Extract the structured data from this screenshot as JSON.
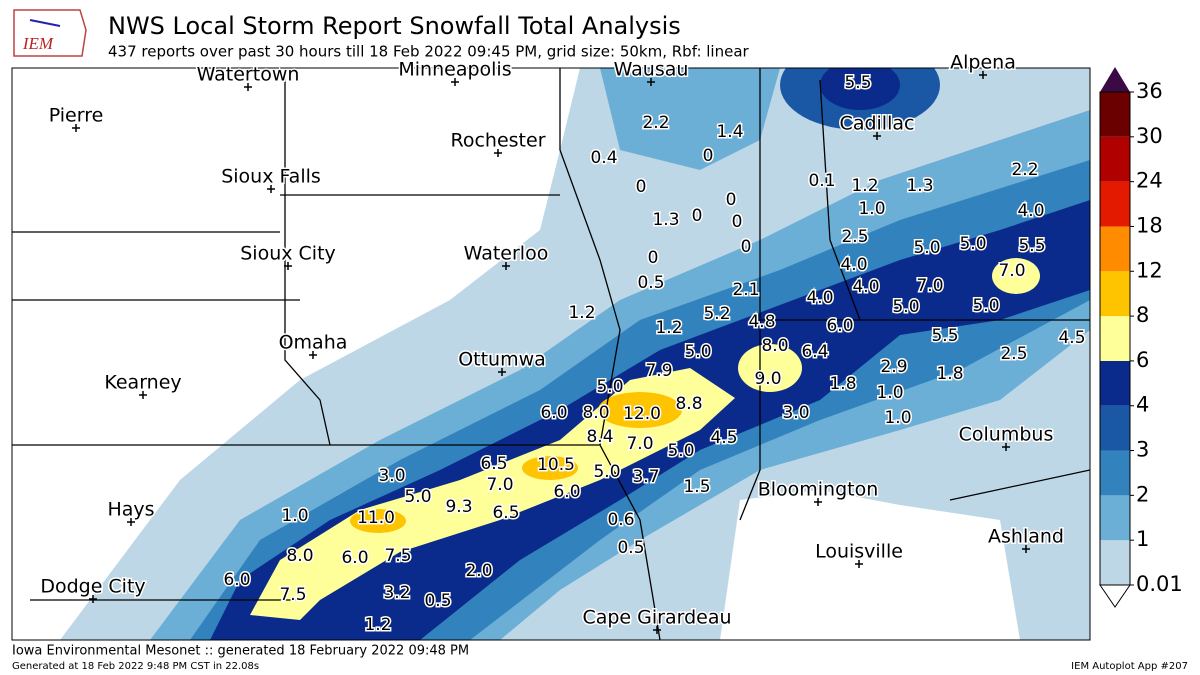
{
  "header": {
    "logo": "IEM",
    "title": "NWS Local Storm Report Snowfall Total Analysis",
    "subtitle": "437 reports over past 30 hours till 18 Feb 2022 09:45 PM, grid size: 50km, Rbf: linear"
  },
  "cities": [
    "Watertown",
    "Minneapolis",
    "Wausau",
    "Alpena",
    "Pierre",
    "Rochester",
    "Cadillac",
    "Sioux Falls",
    "Sioux City",
    "Waterloo",
    "Omaha",
    "Ottumwa",
    "Kearney",
    "Columbus",
    "Bloomington",
    "Hays",
    "Louisville",
    "Ashland",
    "Dodge City",
    "Cape Girardeau"
  ],
  "reports": [
    "5.5",
    "2.2",
    "1.4",
    "0.4",
    "0",
    "0",
    "0",
    "1.3",
    "0",
    "0",
    "0",
    "0",
    "0.5",
    "0.1",
    "1.2",
    "1.3",
    "2.2",
    "1.0",
    "4.0",
    "2.5",
    "5.0",
    "5.0",
    "5.5",
    "4.0",
    "7.0",
    "2.1",
    "4.0",
    "4.0",
    "7.0",
    "5.0",
    "5.0",
    "1.2",
    "5.2",
    "4.8",
    "6.0",
    "1.2",
    "5.5",
    "4.5",
    "8.0",
    "6.4",
    "5.0",
    "2.5",
    "2.9",
    "1.8",
    "7.9",
    "9.0",
    "1.8",
    "1.0",
    "5.0",
    "8.8",
    "6.0",
    "8.0",
    "12.0",
    "3.0",
    "1.0",
    "8.4",
    "7.0",
    "4.5",
    "5.0",
    "10.5",
    "6.5",
    "5.0",
    "3.7",
    "3.0",
    "7.0",
    "6.0",
    "1.5",
    "5.0",
    "9.3",
    "6.5",
    "1.0",
    "11.0",
    "0.6",
    "0.5",
    "8.0",
    "6.0",
    "7.5",
    "2.0",
    "6.0",
    "3.2",
    "7.5",
    "0.5",
    "1.2"
  ],
  "colorbar": {
    "ticks": [
      0.01,
      1,
      2,
      3,
      4,
      6,
      8,
      12,
      18,
      24,
      30,
      36
    ],
    "colors": [
      "#bdd7e7",
      "#6baed6",
      "#3182bd",
      "#1a58a6",
      "#0a2a8c",
      "#ffff99",
      "#ffc400",
      "#ff8c00",
      "#e31a00",
      "#b00000",
      "#6b0000"
    ],
    "over_color": "#3b0a45"
  },
  "footer": {
    "left": "Iowa Environmental Mesonet :: generated 18 February 2022 09:48 PM",
    "generated": "Generated at 18 Feb 2022 9:48 PM CST in 22.08s",
    "app": "IEM Autoplot App #207"
  }
}
